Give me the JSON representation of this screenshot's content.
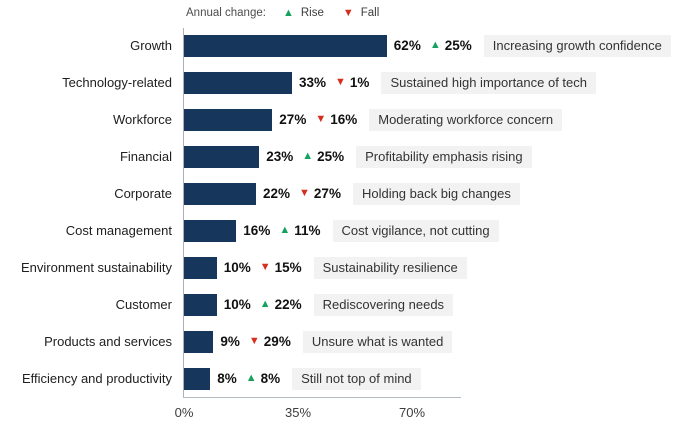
{
  "legend": {
    "title": "Annual change:",
    "rise_label": "Rise",
    "fall_label": "Fall"
  },
  "colors": {
    "bar": "#16365c",
    "rise": "#17a15f",
    "fall": "#d52f1f",
    "pill_bg": "#f2f2f2"
  },
  "axis": {
    "tick_0": "0%",
    "tick_35": "35%",
    "tick_70": "70%"
  },
  "chart_data": {
    "type": "bar",
    "orientation": "horizontal",
    "title": "",
    "xlabel": "",
    "ylabel": "",
    "xlim": [
      0,
      70
    ],
    "x_ticks": [
      "0%",
      "35%",
      "70%"
    ],
    "grid": false,
    "legend_position": "top",
    "categories": [
      "Growth",
      "Technology-related",
      "Workforce",
      "Financial",
      "Corporate",
      "Cost management",
      "Environment sustainability",
      "Customer",
      "Products and services",
      "Efficiency and productivity"
    ],
    "values": [
      62,
      33,
      27,
      23,
      22,
      16,
      10,
      10,
      9,
      8
    ],
    "rows": [
      {
        "category": "Growth",
        "value": 62,
        "value_label": "62%",
        "change_direction": "rise",
        "change_label": "25%",
        "annotation": "Increasing growth confidence"
      },
      {
        "category": "Technology-related",
        "value": 33,
        "value_label": "33%",
        "change_direction": "fall",
        "change_label": "1%",
        "annotation": "Sustained high importance of tech"
      },
      {
        "category": "Workforce",
        "value": 27,
        "value_label": "27%",
        "change_direction": "fall",
        "change_label": "16%",
        "annotation": "Moderating workforce concern"
      },
      {
        "category": "Financial",
        "value": 23,
        "value_label": "23%",
        "change_direction": "rise",
        "change_label": "25%",
        "annotation": "Profitability emphasis rising"
      },
      {
        "category": "Corporate",
        "value": 22,
        "value_label": "22%",
        "change_direction": "fall",
        "change_label": "27%",
        "annotation": "Holding back big changes"
      },
      {
        "category": "Cost management",
        "value": 16,
        "value_label": "16%",
        "change_direction": "rise",
        "change_label": "11%",
        "annotation": "Cost vigilance, not cutting"
      },
      {
        "category": "Environment sustainability",
        "value": 10,
        "value_label": "10%",
        "change_direction": "fall",
        "change_label": "15%",
        "annotation": "Sustainability resilience"
      },
      {
        "category": "Customer",
        "value": 10,
        "value_label": "10%",
        "change_direction": "rise",
        "change_label": "22%",
        "annotation": "Rediscovering needs"
      },
      {
        "category": "Products and services",
        "value": 9,
        "value_label": "9%",
        "change_direction": "fall",
        "change_label": "29%",
        "annotation": "Unsure what is wanted"
      },
      {
        "category": "Efficiency and productivity",
        "value": 8,
        "value_label": "8%",
        "change_direction": "rise",
        "change_label": "8%",
        "annotation": "Still not top of mind"
      }
    ]
  }
}
